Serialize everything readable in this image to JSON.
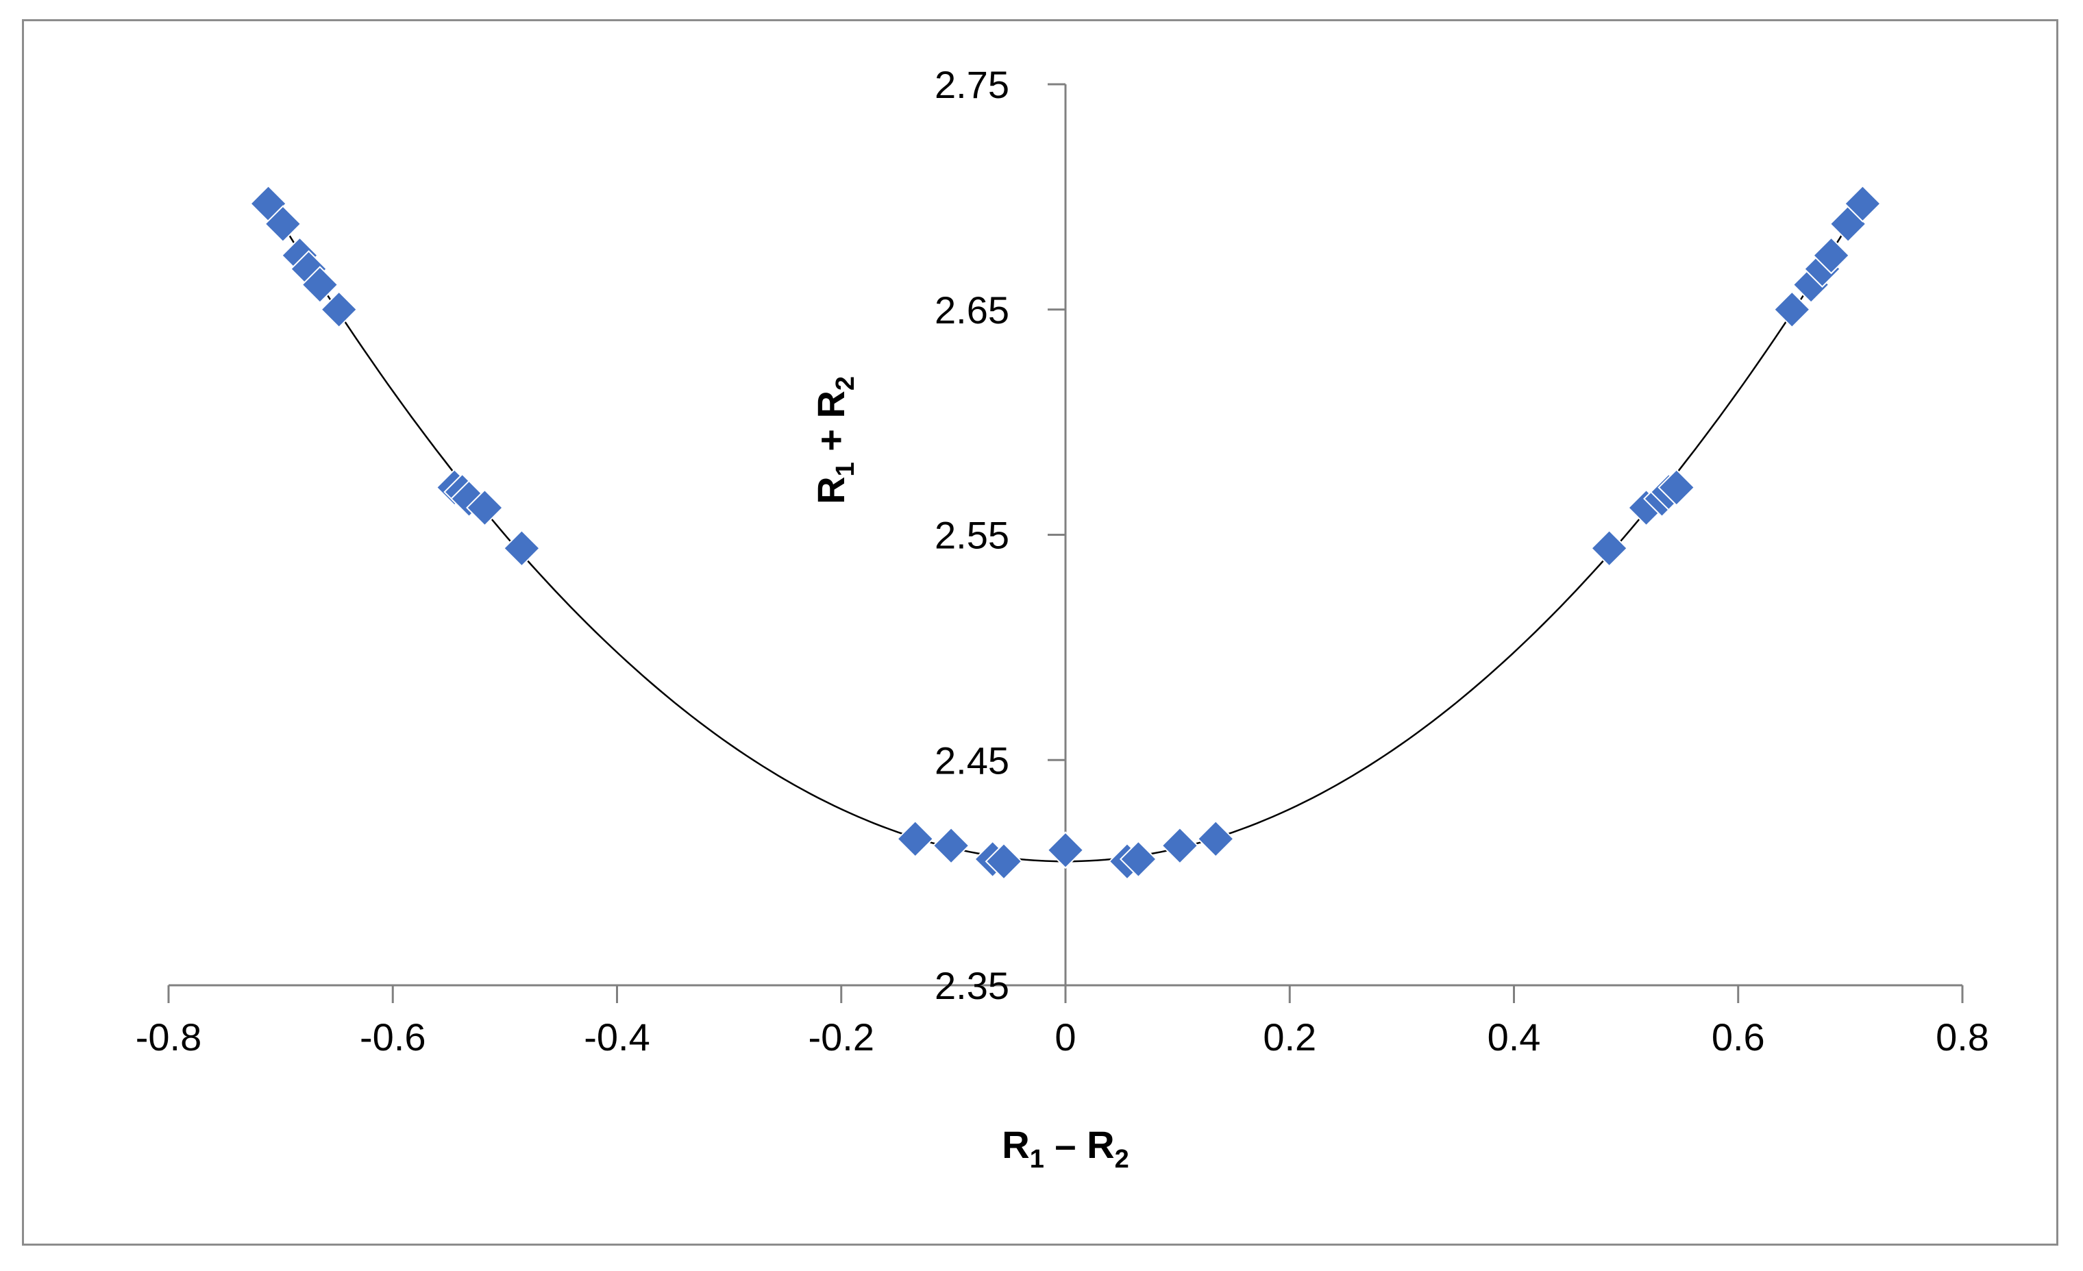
{
  "chart_data": {
    "type": "scatter",
    "title": "",
    "xlabel": {
      "parts": [
        "R",
        "1",
        " – R",
        "2"
      ]
    },
    "ylabel": {
      "parts": [
        "R",
        "1",
        " + R",
        "2"
      ]
    },
    "xlim": [
      -0.8,
      0.8
    ],
    "ylim": [
      2.35,
      2.75
    ],
    "xticks": [
      "-0.8",
      "-0.6",
      "-0.4",
      "-0.2",
      "0",
      "0.2",
      "0.4",
      "0.6",
      "0.8"
    ],
    "yticks": [
      "2.35",
      "2.45",
      "2.55",
      "2.65",
      "2.75"
    ],
    "grid": false,
    "legend": "none",
    "marker": "diamond",
    "marker_color": "#4472c4",
    "trendline_color": "#000000",
    "trendline": {
      "type": "polynomial",
      "coefficients": [
        2.405,
        0,
        0.58
      ]
    },
    "series": [
      {
        "x": [
          -0.711,
          -0.698,
          -0.683,
          -0.675,
          -0.665,
          -0.648,
          -0.545,
          -0.538,
          -0.532,
          -0.518,
          -0.485,
          -0.134,
          -0.102,
          -0.065,
          -0.055,
          0.0,
          0.055,
          0.065,
          0.102,
          0.134,
          0.485,
          0.518,
          0.532,
          0.538,
          0.545,
          0.648,
          0.665,
          0.675,
          0.683,
          0.698,
          0.711
        ],
        "y": [
          2.697,
          2.688,
          2.674,
          2.668,
          2.661,
          2.65,
          2.571,
          2.569,
          2.566,
          2.562,
          2.544,
          2.415,
          2.412,
          2.406,
          2.405,
          2.41,
          2.405,
          2.406,
          2.412,
          2.415,
          2.544,
          2.562,
          2.566,
          2.569,
          2.571,
          2.65,
          2.661,
          2.668,
          2.674,
          2.688,
          2.697
        ]
      }
    ]
  }
}
